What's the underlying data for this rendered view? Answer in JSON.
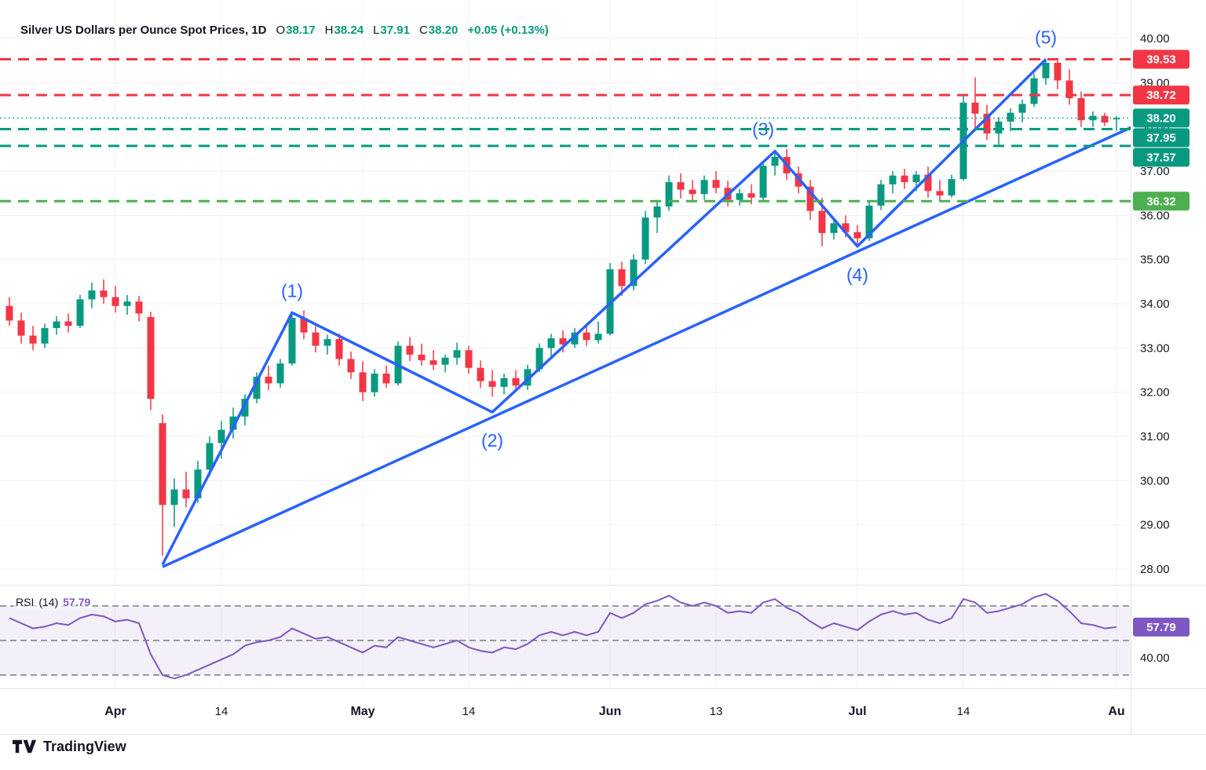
{
  "header": {
    "title": "Silver US Dollars per Ounce Spot Prices, 1D",
    "o_label": "O",
    "o": "38.17",
    "h_label": "H",
    "h": "38.24",
    "l_label": "L",
    "l": "37.91",
    "c_label": "C",
    "c": "38.20",
    "change": "+0.05 (+0.13%)",
    "up_color": "#089981"
  },
  "footer": {
    "brand": "TradingView"
  },
  "chart_data": {
    "type": "candlestick",
    "title": "Silver US Dollars per Ounce Spot Prices, 1D",
    "up_color": "#089981",
    "down_color": "#f23645",
    "grid": true,
    "price_axis": {
      "min": 28,
      "max": 40,
      "ticks": [
        40,
        39,
        38,
        37,
        36,
        35,
        34,
        33,
        32,
        31,
        30,
        29,
        28
      ]
    },
    "x_ticks": [
      {
        "label": "Apr",
        "index": 9,
        "major": true
      },
      {
        "label": "14",
        "index": 18,
        "major": false
      },
      {
        "label": "May",
        "index": 30,
        "major": true
      },
      {
        "label": "14",
        "index": 39,
        "major": false
      },
      {
        "label": "Jun",
        "index": 51,
        "major": true
      },
      {
        "label": "13",
        "index": 60,
        "major": false
      },
      {
        "label": "Jul",
        "index": 72,
        "major": true
      },
      {
        "label": "14",
        "index": 81,
        "major": false
      },
      {
        "label": "Au",
        "index": 94,
        "major": true
      }
    ],
    "candles": [
      [
        33.95,
        34.15,
        33.5,
        33.62
      ],
      [
        33.62,
        33.8,
        33.1,
        33.28
      ],
      [
        33.28,
        33.5,
        32.95,
        33.1
      ],
      [
        33.1,
        33.55,
        33.0,
        33.45
      ],
      [
        33.45,
        33.72,
        33.3,
        33.6
      ],
      [
        33.6,
        33.78,
        33.35,
        33.5
      ],
      [
        33.5,
        34.2,
        33.45,
        34.1
      ],
      [
        34.1,
        34.48,
        33.9,
        34.3
      ],
      [
        34.3,
        34.55,
        34.0,
        34.15
      ],
      [
        34.15,
        34.4,
        33.8,
        33.95
      ],
      [
        33.95,
        34.2,
        33.75,
        34.05
      ],
      [
        34.05,
        34.18,
        33.6,
        33.78
      ],
      [
        33.7,
        33.82,
        31.6,
        31.85
      ],
      [
        31.3,
        31.5,
        28.3,
        29.45
      ],
      [
        29.45,
        30.05,
        28.95,
        29.8
      ],
      [
        29.8,
        30.2,
        29.4,
        29.6
      ],
      [
        29.6,
        30.45,
        29.5,
        30.25
      ],
      [
        30.25,
        31.0,
        30.1,
        30.85
      ],
      [
        30.85,
        31.35,
        30.5,
        31.15
      ],
      [
        31.15,
        31.65,
        30.95,
        31.45
      ],
      [
        31.45,
        31.95,
        31.25,
        31.85
      ],
      [
        31.85,
        32.45,
        31.75,
        32.35
      ],
      [
        32.35,
        32.6,
        32.05,
        32.2
      ],
      [
        32.2,
        32.75,
        32.1,
        32.65
      ],
      [
        32.65,
        33.8,
        32.6,
        33.68
      ],
      [
        33.68,
        33.85,
        33.2,
        33.35
      ],
      [
        33.35,
        33.5,
        32.9,
        33.05
      ],
      [
        33.05,
        33.3,
        32.85,
        33.2
      ],
      [
        33.2,
        33.32,
        32.6,
        32.75
      ],
      [
        32.75,
        32.92,
        32.3,
        32.45
      ],
      [
        32.45,
        32.7,
        31.8,
        32.0
      ],
      [
        32.0,
        32.52,
        31.9,
        32.42
      ],
      [
        32.42,
        32.6,
        32.1,
        32.2
      ],
      [
        32.2,
        33.15,
        32.15,
        33.05
      ],
      [
        33.05,
        33.25,
        32.7,
        32.85
      ],
      [
        32.85,
        33.1,
        32.6,
        32.72
      ],
      [
        32.72,
        32.95,
        32.5,
        32.62
      ],
      [
        32.62,
        32.85,
        32.45,
        32.78
      ],
      [
        32.78,
        33.12,
        32.62,
        32.95
      ],
      [
        32.95,
        33.05,
        32.42,
        32.55
      ],
      [
        32.55,
        32.72,
        32.1,
        32.25
      ],
      [
        32.25,
        32.5,
        31.9,
        32.12
      ],
      [
        32.12,
        32.42,
        31.95,
        32.32
      ],
      [
        32.32,
        32.5,
        32.0,
        32.15
      ],
      [
        32.15,
        32.62,
        32.05,
        32.52
      ],
      [
        32.52,
        33.1,
        32.45,
        33.0
      ],
      [
        33.0,
        33.32,
        32.8,
        33.22
      ],
      [
        33.22,
        33.4,
        32.9,
        33.08
      ],
      [
        33.08,
        33.45,
        33.0,
        33.35
      ],
      [
        33.35,
        33.52,
        33.05,
        33.18
      ],
      [
        33.18,
        33.6,
        33.1,
        33.32
      ],
      [
        33.32,
        34.92,
        33.28,
        34.78
      ],
      [
        34.78,
        34.95,
        34.18,
        34.4
      ],
      [
        34.4,
        35.12,
        34.3,
        35.0
      ],
      [
        35.0,
        36.1,
        34.9,
        35.95
      ],
      [
        35.95,
        36.32,
        35.6,
        36.2
      ],
      [
        36.2,
        36.9,
        36.1,
        36.75
      ],
      [
        36.75,
        36.95,
        36.38,
        36.58
      ],
      [
        36.58,
        36.8,
        36.3,
        36.48
      ],
      [
        36.48,
        36.9,
        36.35,
        36.8
      ],
      [
        36.8,
        37.0,
        36.5,
        36.62
      ],
      [
        36.62,
        36.78,
        36.2,
        36.35
      ],
      [
        36.35,
        36.6,
        36.22,
        36.5
      ],
      [
        36.5,
        36.7,
        36.25,
        36.4
      ],
      [
        36.4,
        37.22,
        36.35,
        37.12
      ],
      [
        37.12,
        37.45,
        36.9,
        37.32
      ],
      [
        37.32,
        37.5,
        36.8,
        36.95
      ],
      [
        36.95,
        37.1,
        36.5,
        36.65
      ],
      [
        36.65,
        36.8,
        35.9,
        36.1
      ],
      [
        36.1,
        36.4,
        35.3,
        35.6
      ],
      [
        35.6,
        35.92,
        35.45,
        35.82
      ],
      [
        35.82,
        36.0,
        35.5,
        35.62
      ],
      [
        35.62,
        35.78,
        35.32,
        35.48
      ],
      [
        35.48,
        36.32,
        35.42,
        36.22
      ],
      [
        36.22,
        36.8,
        36.12,
        36.7
      ],
      [
        36.7,
        37.0,
        36.5,
        36.9
      ],
      [
        36.9,
        37.05,
        36.6,
        36.75
      ],
      [
        36.75,
        37.0,
        36.55,
        36.92
      ],
      [
        36.92,
        37.1,
        36.4,
        36.55
      ],
      [
        36.55,
        36.8,
        36.3,
        36.45
      ],
      [
        36.45,
        36.92,
        36.4,
        36.82
      ],
      [
        36.82,
        38.7,
        36.78,
        38.55
      ],
      [
        38.55,
        39.12,
        37.95,
        38.3
      ],
      [
        38.3,
        38.5,
        37.7,
        37.85
      ],
      [
        37.85,
        38.22,
        37.6,
        38.12
      ],
      [
        38.12,
        38.42,
        37.9,
        38.32
      ],
      [
        38.32,
        38.62,
        38.1,
        38.52
      ],
      [
        38.52,
        39.2,
        38.45,
        39.1
      ],
      [
        39.1,
        39.53,
        38.95,
        39.45
      ],
      [
        39.45,
        39.5,
        38.85,
        39.05
      ],
      [
        39.05,
        39.3,
        38.5,
        38.65
      ],
      [
        38.65,
        38.8,
        38.0,
        38.15
      ],
      [
        38.15,
        38.35,
        38.0,
        38.25
      ],
      [
        38.25,
        38.32,
        38.02,
        38.1
      ],
      [
        38.17,
        38.24,
        37.91,
        38.2
      ]
    ],
    "levels": [
      {
        "label": "39.53",
        "value": 39.53,
        "color": "#f23645",
        "style": "dashed"
      },
      {
        "label": "38.72",
        "value": 38.72,
        "color": "#f23645",
        "style": "dashed"
      },
      {
        "label": "37.95",
        "value": 37.95,
        "color": "#089981",
        "style": "dashed"
      },
      {
        "label": "37.57",
        "value": 37.57,
        "color": "#089981",
        "style": "dashed"
      },
      {
        "label": "36.32",
        "value": 36.32,
        "color": "#4caf50",
        "style": "dashed"
      }
    ],
    "current_price": {
      "label": "38.20",
      "value": 38.2,
      "color": "#089981",
      "style": "dotted"
    },
    "trend": {
      "color": "#2962ff",
      "wave_points": [
        {
          "i": 13,
          "p": 28.1
        },
        {
          "i": 24,
          "p": 33.8
        },
        {
          "i": 41,
          "p": 31.55
        },
        {
          "i": 65,
          "p": 37.45
        },
        {
          "i": 72,
          "p": 35.3
        },
        {
          "i": 88,
          "p": 39.53
        }
      ],
      "baseline": [
        {
          "i": 13,
          "p": 28.05
        },
        {
          "i": 97,
          "p": 38.2
        }
      ],
      "labels": [
        {
          "text": "(1)",
          "i": 24,
          "p": 33.8,
          "pos": "above"
        },
        {
          "text": "(2)",
          "i": 41,
          "p": 31.55,
          "pos": "below"
        },
        {
          "text": "(3)",
          "i": 64,
          "p": 37.45,
          "pos": "above"
        },
        {
          "text": "(4)",
          "i": 72,
          "p": 35.3,
          "pos": "below"
        },
        {
          "text": "(5)",
          "i": 88,
          "p": 39.53,
          "pos": "above"
        }
      ]
    },
    "rsi": {
      "name": "RSI",
      "params": "(14)",
      "value": "57.79",
      "color": "#7e57c2",
      "levels": [
        70,
        50,
        30
      ],
      "axis_tick": "40.00",
      "values": [
        63,
        60,
        57,
        58,
        60,
        59,
        63,
        65,
        64,
        61,
        62,
        60,
        42,
        30,
        28,
        30,
        33,
        36,
        39,
        42,
        47,
        49,
        50,
        52,
        57,
        54,
        51,
        52,
        49,
        46,
        43,
        47,
        46,
        52,
        50,
        48,
        46,
        48,
        50,
        46,
        44,
        43,
        46,
        45,
        48,
        53,
        55,
        53,
        55,
        53,
        55,
        66,
        63,
        66,
        71,
        73,
        76,
        72,
        70,
        72,
        70,
        66,
        67,
        66,
        72,
        74,
        69,
        66,
        61,
        57,
        60,
        58,
        56,
        61,
        65,
        67,
        65,
        66,
        62,
        60,
        63,
        74,
        72,
        66,
        67,
        69,
        71,
        75,
        77,
        73,
        67,
        60,
        59,
        57,
        57.79
      ]
    }
  }
}
